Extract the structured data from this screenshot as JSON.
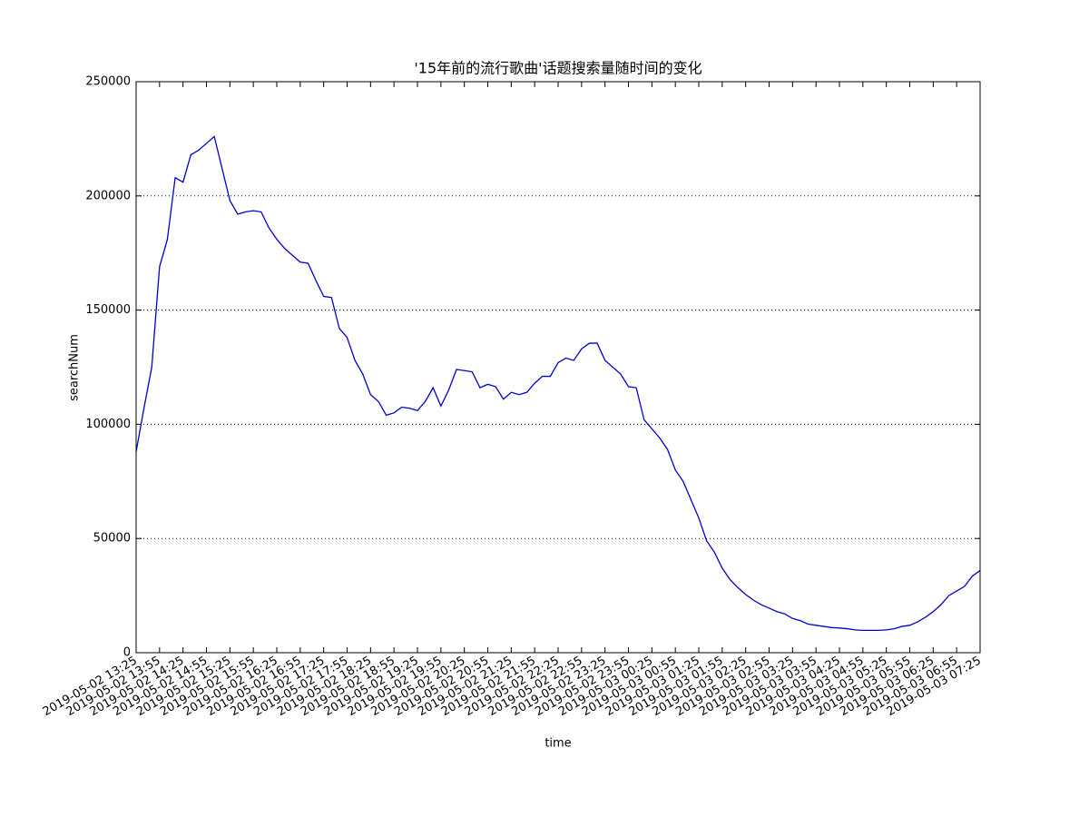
{
  "chart_data": {
    "type": "line",
    "title": "'15年前的流行歌曲'话题搜索量随时间的变化",
    "x_label": "time",
    "y_label": "searchNum",
    "categories": [
      "2019-05-02 13:25",
      null,
      null,
      "2019-05-02 13:55",
      null,
      null,
      "2019-05-02 14:25",
      null,
      null,
      "2019-05-02 14:55",
      null,
      null,
      "2019-05-02 15:25",
      null,
      null,
      "2019-05-02 15:55",
      null,
      null,
      "2019-05-02 16:25",
      null,
      null,
      "2019-05-02 16:55",
      null,
      null,
      "2019-05-02 17:25",
      null,
      null,
      "2019-05-02 17:55",
      null,
      null,
      "2019-05-02 18:25",
      null,
      null,
      "2019-05-02 18:55",
      null,
      null,
      "2019-05-02 19:25",
      null,
      null,
      "2019-05-02 19:55",
      null,
      null,
      "2019-05-02 20:25",
      null,
      null,
      "2019-05-02 20:55",
      null,
      null,
      "2019-05-02 21:25",
      null,
      null,
      "2019-05-02 21:55",
      null,
      null,
      "2019-05-02 22:25",
      null,
      null,
      "2019-05-02 22:55",
      null,
      null,
      "2019-05-02 23:25",
      null,
      null,
      "2019-05-02 23:55",
      null,
      null,
      "2019-05-03 00:25",
      null,
      null,
      "2019-05-03 00:55",
      null,
      null,
      "2019-05-03 01:25",
      null,
      null,
      "2019-05-03 01:55",
      null,
      null,
      "2019-05-03 02:25",
      null,
      null,
      "2019-05-03 02:55",
      null,
      null,
      "2019-05-03 03:25",
      null,
      null,
      "2019-05-03 03:55",
      null,
      null,
      "2019-05-03 04:25",
      null,
      null,
      "2019-05-03 04:55",
      null,
      null,
      "2019-05-03 05:25",
      null,
      null,
      "2019-05-03 05:55",
      null,
      null,
      "2019-05-03 06:25",
      null,
      null,
      "2019-05-03 06:55",
      null,
      null,
      "2019-05-03 07:25"
    ],
    "values": [
      88000,
      107000,
      125000,
      169000,
      181000,
      208000,
      206000,
      218000,
      220000,
      223000,
      226000,
      212000,
      198000,
      192000,
      193000,
      193500,
      193000,
      186000,
      181000,
      177000,
      174000,
      171000,
      170500,
      163000,
      156000,
      155500,
      142000,
      138000,
      128000,
      122000,
      113000,
      110000,
      104000,
      105000,
      107500,
      107000,
      106000,
      110000,
      116000,
      108000,
      115000,
      124000,
      123500,
      123000,
      116000,
      117500,
      116500,
      111000,
      114000,
      113000,
      114000,
      118000,
      121000,
      121000,
      127000,
      129000,
      128000,
      133000,
      135500,
      135500,
      128000,
      125000,
      122000,
      116500,
      116000,
      102000,
      98000,
      94000,
      89000,
      80000,
      75000,
      67000,
      59000,
      49000,
      44000,
      37000,
      32000,
      28500,
      25500,
      23000,
      21000,
      19500,
      18000,
      17000,
      15000,
      14000,
      12500,
      12000,
      11500,
      11000,
      10800,
      10500,
      10000,
      9800,
      9800,
      9800,
      10000,
      10500,
      11500,
      12000,
      13500,
      15500,
      18000,
      21000,
      25000,
      27000,
      29000,
      33500,
      36000
    ],
    "color": "#0000cc",
    "ylim": [
      0,
      250000
    ],
    "yticks": [
      0,
      50000,
      100000,
      150000,
      200000,
      250000
    ],
    "grid": true
  }
}
